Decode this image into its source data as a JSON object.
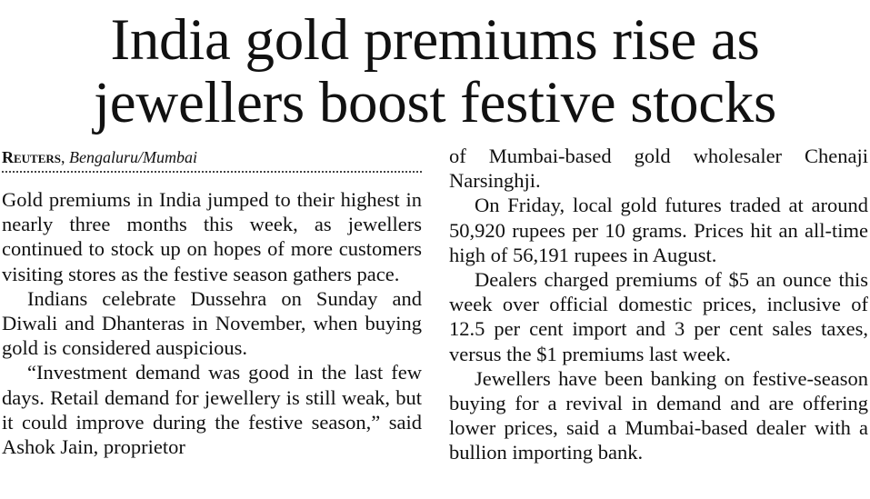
{
  "headline": {
    "line1": "India gold premiums rise as",
    "line2": "jewellers boost festive stocks"
  },
  "byline": {
    "agency": "Reuters",
    "separator": ", ",
    "location": "Bengaluru/Mumbai"
  },
  "article": {
    "left_paragraphs": [
      "Gold premiums in India jumped to their highest in nearly three months this week, as jewellers continued to stock up on hopes of more customers visiting stores as the festive season gathers pace.",
      "Indians celebrate Dussehra on Sunday and Diwali and Dhanteras in November, when buying gold is considered auspicious.",
      "“Investment demand was good in the last few days. Retail demand for jewellery is still weak, but it could improve during the festive season,” said Ashok Jain, proprietor"
    ],
    "right_paragraphs": [
      "of Mumbai-based gold wholesaler Chenaji Narsinghji.",
      "On Friday, local gold futures traded at around 50,920 rupees per 10 grams. Prices hit an all-time high of 56,191 rupees in August.",
      "Dealers charged premiums of $5 an ounce this week over official domestic prices, inclusive of 12.5 per cent import and 3 per cent sales taxes, versus the $1 premiums last week.",
      "Jewellers have been banking on festive-season buying for a revival in demand and are offering lower prices, said a Mumbai-based dealer with a bullion importing bank."
    ]
  }
}
